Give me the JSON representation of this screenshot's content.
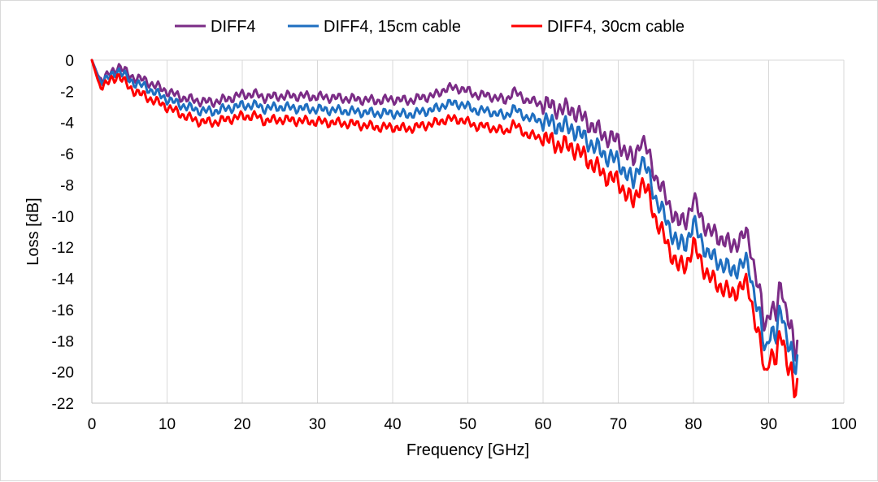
{
  "chart_data": {
    "type": "line",
    "title": "",
    "xlabel": "Frequency [GHz]",
    "ylabel": "Loss [dB]",
    "xlim": [
      0,
      100
    ],
    "ylim": [
      -22,
      0
    ],
    "xticks": [
      0,
      10,
      20,
      30,
      40,
      50,
      60,
      70,
      80,
      90,
      100
    ],
    "yticks": [
      0,
      -2,
      -4,
      -6,
      -8,
      -10,
      -12,
      -14,
      -16,
      -18,
      -20,
      -22
    ],
    "grid": "vertical",
    "legend_position": "top",
    "series": [
      {
        "name": "DIFF4",
        "color": "#7B2C86",
        "x": [
          0,
          1,
          2,
          3,
          3.5,
          5,
          7,
          10,
          12,
          14,
          16,
          18,
          20,
          22,
          23,
          25,
          28,
          32,
          35,
          38,
          40,
          42,
          44,
          46,
          47,
          49,
          51,
          53,
          55,
          56,
          58,
          60,
          62,
          64,
          66,
          68,
          70,
          72,
          73,
          74,
          75,
          76,
          77,
          78,
          79,
          80,
          81,
          82,
          83,
          84,
          85,
          86,
          87,
          87.5,
          88,
          89,
          89.5,
          90,
          90.5,
          91,
          91.5,
          92,
          92.5,
          93,
          93.5,
          93.8
        ],
        "values": [
          0,
          -1.2,
          -1.0,
          -0.7,
          -0.3,
          -1.0,
          -1.3,
          -2.0,
          -2.4,
          -2.6,
          -2.7,
          -2.5,
          -2.2,
          -2.2,
          -2.4,
          -2.3,
          -2.3,
          -2.4,
          -2.5,
          -2.6,
          -2.5,
          -2.6,
          -2.4,
          -2.2,
          -1.8,
          -1.8,
          -2.2,
          -2.3,
          -2.6,
          -2.0,
          -2.6,
          -2.8,
          -3.1,
          -3.2,
          -4.0,
          -4.8,
          -5.2,
          -6.5,
          -5.0,
          -6.0,
          -7.5,
          -8.5,
          -9.5,
          -10.5,
          -10.2,
          -9.0,
          -10.0,
          -11.0,
          -11.2,
          -11.5,
          -12.0,
          -11.5,
          -11.2,
          -11.8,
          -13.0,
          -15.5,
          -17.5,
          -16.0,
          -15.8,
          -16.5,
          -14.5,
          -15.0,
          -16.5,
          -17.0,
          -19.5,
          -18.0
        ]
      },
      {
        "name": "DIFF4, 15cm cable",
        "color": "#1F6FC0",
        "x": [
          0,
          1,
          2,
          3,
          3.5,
          5,
          7,
          10,
          12,
          14,
          16,
          18,
          20,
          22,
          23,
          25,
          28,
          32,
          35,
          38,
          40,
          42,
          44,
          46,
          47,
          49,
          51,
          53,
          55,
          56,
          58,
          60,
          62,
          64,
          66,
          68,
          70,
          72,
          73,
          74,
          75,
          76,
          77,
          78,
          79,
          80,
          81,
          82,
          83,
          84,
          85,
          86,
          87,
          87.5,
          88,
          89,
          89.5,
          90,
          90.5,
          91,
          91.5,
          92,
          92.5,
          93,
          93.5,
          93.8
        ],
        "values": [
          0,
          -1.3,
          -1.2,
          -0.9,
          -0.6,
          -1.3,
          -1.7,
          -2.5,
          -2.9,
          -3.2,
          -3.3,
          -3.1,
          -2.9,
          -2.9,
          -3.1,
          -3.0,
          -3.1,
          -3.2,
          -3.3,
          -3.4,
          -3.4,
          -3.5,
          -3.3,
          -3.1,
          -2.8,
          -2.8,
          -3.2,
          -3.3,
          -3.6,
          -3.1,
          -3.7,
          -3.9,
          -4.2,
          -4.4,
          -5.2,
          -6.0,
          -6.5,
          -7.9,
          -6.3,
          -7.3,
          -8.9,
          -9.9,
          -10.9,
          -11.9,
          -11.7,
          -10.5,
          -11.5,
          -12.5,
          -12.8,
          -13.1,
          -13.6,
          -13.2,
          -13.0,
          -13.5,
          -14.7,
          -17.0,
          -19.0,
          -17.5,
          -17.3,
          -18.0,
          -16.0,
          -16.5,
          -18.0,
          -18.6,
          -20.3,
          -19.2
        ]
      },
      {
        "name": "DIFF4, 30cm cable",
        "color": "#FF0000",
        "x": [
          0,
          1,
          2,
          3,
          3.5,
          5,
          7,
          10,
          12,
          14,
          16,
          18,
          20,
          22,
          23,
          25,
          28,
          32,
          35,
          38,
          40,
          42,
          44,
          46,
          47,
          49,
          51,
          53,
          55,
          56,
          58,
          60,
          62,
          64,
          66,
          68,
          70,
          72,
          73,
          74,
          75,
          76,
          77,
          78,
          79,
          80,
          81,
          82,
          83,
          84,
          85,
          86,
          87,
          87.5,
          88,
          89,
          89.5,
          90,
          90.5,
          91,
          91.5,
          92,
          92.5,
          93,
          93.5,
          93.8
        ],
        "values": [
          0,
          -1.6,
          -1.5,
          -1.2,
          -0.9,
          -1.8,
          -2.3,
          -3.0,
          -3.5,
          -3.9,
          -4.0,
          -3.8,
          -3.6,
          -3.6,
          -3.9,
          -3.8,
          -3.9,
          -4.0,
          -4.1,
          -4.3,
          -4.3,
          -4.4,
          -4.2,
          -4.0,
          -3.8,
          -3.8,
          -4.2,
          -4.3,
          -4.6,
          -4.1,
          -4.8,
          -5.0,
          -5.4,
          -5.6,
          -6.4,
          -7.3,
          -7.8,
          -9.2,
          -7.8,
          -8.6,
          -10.2,
          -11.3,
          -12.3,
          -13.3,
          -13.1,
          -11.9,
          -12.9,
          -13.9,
          -14.3,
          -14.6,
          -15.1,
          -14.6,
          -14.4,
          -14.9,
          -16.2,
          -18.5,
          -20.5,
          -19.0,
          -18.8,
          -19.5,
          -17.5,
          -18.0,
          -19.5,
          -20.0,
          -21.8,
          -20.9
        ]
      }
    ]
  }
}
